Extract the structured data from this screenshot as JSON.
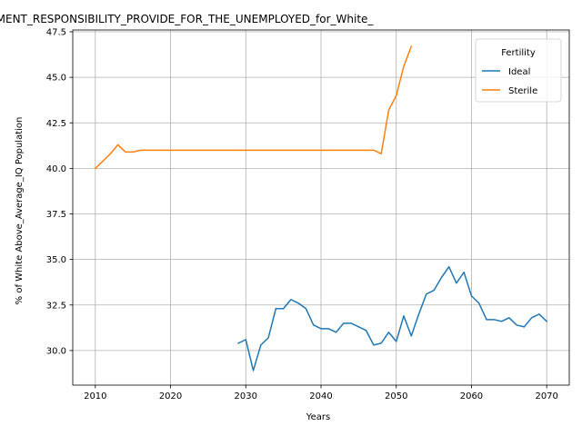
{
  "chart_data": {
    "type": "line",
    "title": "GOVERNMENT_RESPONSIBILITY_PROVIDE_FOR_THE_UNEMPLOYED_for_White_",
    "xlabel": "Years",
    "ylabel": "% of White Above_Average_IQ Population",
    "xlim": [
      2007,
      2073
    ],
    "ylim": [
      28.1,
      47.6
    ],
    "xticks": [
      2010,
      2020,
      2030,
      2040,
      2050,
      2060,
      2070
    ],
    "yticks": [
      30.0,
      32.5,
      35.0,
      37.5,
      40.0,
      42.5,
      45.0,
      47.5
    ],
    "ytick_labels": [
      "30.0",
      "32.5",
      "35.0",
      "37.5",
      "40.0",
      "42.5",
      "45.0",
      "47.5"
    ],
    "grid": true,
    "legend": {
      "title": "Fertility",
      "placement": "top-right"
    },
    "series": [
      {
        "name": "Ideal",
        "color": "#1f77b4",
        "x": [
          2029,
          2030,
          2031,
          2032,
          2033,
          2034,
          2035,
          2036,
          2037,
          2038,
          2039,
          2040,
          2041,
          2042,
          2043,
          2044,
          2045,
          2046,
          2047,
          2048,
          2049,
          2050,
          2051,
          2052,
          2053,
          2054,
          2055,
          2056,
          2057,
          2058,
          2059,
          2060,
          2061,
          2062,
          2063,
          2064,
          2065,
          2066,
          2067,
          2068,
          2069,
          2070
        ],
        "values": [
          30.4,
          30.6,
          28.9,
          30.3,
          30.7,
          32.3,
          32.3,
          32.8,
          32.6,
          32.3,
          31.4,
          31.2,
          31.2,
          31.0,
          31.5,
          31.5,
          31.3,
          31.1,
          30.3,
          30.4,
          31.0,
          30.5,
          31.9,
          30.8,
          32.0,
          33.1,
          33.3,
          34.0,
          34.6,
          33.7,
          34.3,
          33.0,
          32.6,
          31.7,
          31.7,
          31.6,
          31.8,
          31.4,
          31.3,
          31.8,
          32.0,
          31.6
        ]
      },
      {
        "name": "Sterile",
        "color": "#ff7f0e",
        "x": [
          2010,
          2011,
          2012,
          2013,
          2014,
          2015,
          2016,
          2017,
          2018,
          2019,
          2020,
          2021,
          2022,
          2023,
          2024,
          2025,
          2026,
          2027,
          2028,
          2029,
          2030,
          2031,
          2032,
          2033,
          2034,
          2035,
          2036,
          2037,
          2038,
          2039,
          2040,
          2041,
          2042,
          2043,
          2044,
          2045,
          2046,
          2047,
          2048,
          2049,
          2050,
          2051,
          2052
        ],
        "values": [
          40.0,
          40.4,
          40.8,
          41.3,
          40.9,
          40.9,
          41.0,
          41.0,
          41.0,
          41.0,
          41.0,
          41.0,
          41.0,
          41.0,
          41.0,
          41.0,
          41.0,
          41.0,
          41.0,
          41.0,
          41.0,
          41.0,
          41.0,
          41.0,
          41.0,
          41.0,
          41.0,
          41.0,
          41.0,
          41.0,
          41.0,
          41.0,
          41.0,
          41.0,
          41.0,
          41.0,
          41.0,
          41.0,
          40.8,
          43.2,
          44.0,
          45.6,
          46.7
        ]
      }
    ]
  }
}
